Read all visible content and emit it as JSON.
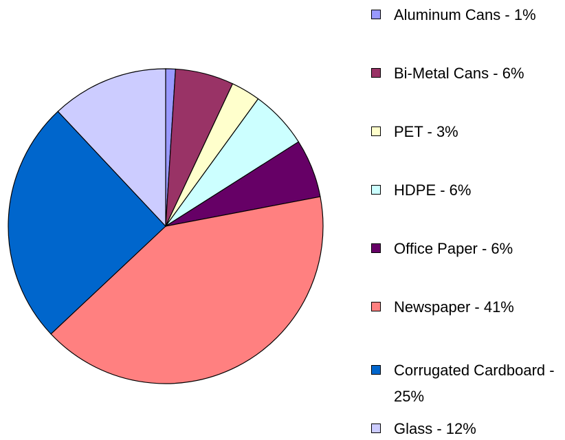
{
  "chart_data": {
    "type": "pie",
    "labels": [
      "Aluminum Cans - 1%",
      "Bi-Metal Cans - 6%",
      "PET - 3%",
      "HDPE - 6%",
      "Office Paper - 6%",
      "Newspaper - 41%",
      "Corrugated Cardboard - 25%",
      "Glass - 12%"
    ],
    "values": [
      1,
      6,
      3,
      6,
      6,
      41,
      25,
      12
    ],
    "colors": [
      "#9999FF",
      "#993366",
      "#FFFFCC",
      "#CCFFFF",
      "#660066",
      "#FF8080",
      "#0066CC",
      "#CCCCFF"
    ],
    "legend": "right"
  }
}
